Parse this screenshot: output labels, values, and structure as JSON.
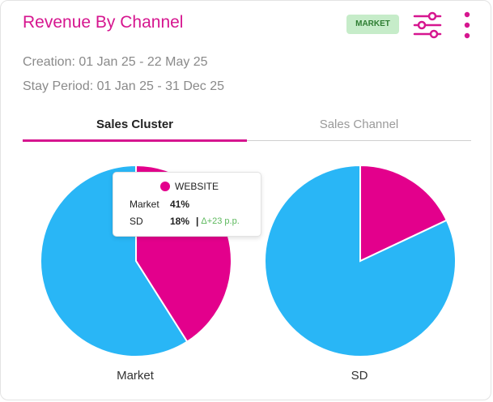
{
  "header": {
    "title": "Revenue By Channel",
    "badge": "MARKET",
    "filter_icon": "sliders-icon",
    "more_icon": "vertical-dots-icon"
  },
  "meta": {
    "creation": "Creation: 01 Jan 25 - 22 May 25",
    "stay_period": "Stay Period: 01 Jan 25 - 31 Dec 25"
  },
  "tabs": [
    {
      "label": "Sales Cluster",
      "active": true
    },
    {
      "label": "Sales Channel",
      "active": false
    }
  ],
  "colors": {
    "accent": "#d6168f",
    "website": "#e3008c",
    "other": "#29b6f6",
    "delta_positive": "#5cb85c"
  },
  "tooltip": {
    "series": "WEBSITE",
    "rows": [
      {
        "label": "Market",
        "value": "41%"
      },
      {
        "label": "SD",
        "value": "18%",
        "delta": "Δ+23 p.p."
      }
    ]
  },
  "chart_data": [
    {
      "type": "pie",
      "xlabel": "Market",
      "slices": [
        {
          "name": "WEBSITE",
          "value": 41,
          "color": "#e3008c"
        },
        {
          "name": "",
          "value": 59,
          "color": "#29b6f6"
        }
      ]
    },
    {
      "type": "pie",
      "xlabel": "SD",
      "slices": [
        {
          "name": "WEBSITE",
          "value": 18,
          "color": "#e3008c"
        },
        {
          "name": "",
          "value": 82,
          "color": "#29b6f6"
        }
      ]
    }
  ]
}
